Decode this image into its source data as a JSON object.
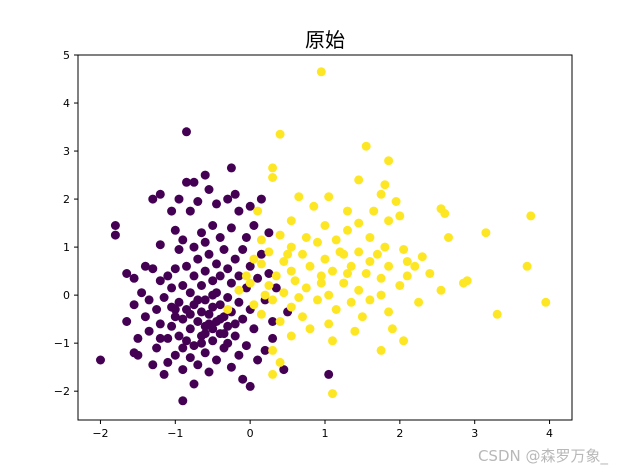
{
  "chart_data": {
    "type": "scatter",
    "title": "原始",
    "xlabel": "",
    "ylabel": "",
    "xlim": [
      -2.3,
      4.3
    ],
    "ylim": [
      -2.6,
      5.0
    ],
    "xticks": [
      -2,
      -1,
      0,
      1,
      2,
      3,
      4
    ],
    "yticks": [
      -2,
      -1,
      0,
      1,
      2,
      3,
      4,
      5
    ],
    "grid": false,
    "legend": "none",
    "colors": {
      "class_0": "#440154",
      "class_1": "#fde725"
    },
    "series": [
      {
        "class": 0,
        "points": [
          [
            -2.0,
            -1.35
          ],
          [
            -1.8,
            1.45
          ],
          [
            -1.8,
            1.25
          ],
          [
            -1.65,
            0.45
          ],
          [
            -1.65,
            -0.55
          ],
          [
            -1.55,
            0.35
          ],
          [
            -1.55,
            -0.2
          ],
          [
            -1.55,
            -1.2
          ],
          [
            -1.5,
            -0.9
          ],
          [
            -1.5,
            -1.25
          ],
          [
            -1.45,
            0.05
          ],
          [
            -1.4,
            0.6
          ],
          [
            -1.4,
            -0.45
          ],
          [
            -1.35,
            -0.1
          ],
          [
            -1.35,
            -0.75
          ],
          [
            -1.3,
            2.0
          ],
          [
            -1.3,
            0.55
          ],
          [
            -1.3,
            -1.45
          ],
          [
            -1.25,
            -0.3
          ],
          [
            -1.25,
            -1.1
          ],
          [
            -1.2,
            2.1
          ],
          [
            -1.2,
            1.05
          ],
          [
            -1.2,
            0.3
          ],
          [
            -1.2,
            -0.6
          ],
          [
            -1.15,
            -1.65
          ],
          [
            -1.15,
            -0.05
          ],
          [
            -1.1,
            0.4
          ],
          [
            -1.1,
            -0.9
          ],
          [
            -1.1,
            -1.4
          ],
          [
            -1.05,
            1.75
          ],
          [
            -1.05,
            0.15
          ],
          [
            -1.05,
            -0.25
          ],
          [
            -1.05,
            -0.65
          ],
          [
            -1.0,
            1.35
          ],
          [
            -1.0,
            0.55
          ],
          [
            -1.0,
            -0.45
          ],
          [
            -1.0,
            -1.25
          ],
          [
            -0.95,
            2.0
          ],
          [
            -0.95,
            0.95
          ],
          [
            -0.95,
            -0.15
          ],
          [
            -0.95,
            -0.85
          ],
          [
            -0.9,
            -2.2
          ],
          [
            -0.9,
            1.15
          ],
          [
            -0.9,
            0.2
          ],
          [
            -0.9,
            -0.5
          ],
          [
            -0.9,
            -1.55
          ],
          [
            -0.85,
            3.4
          ],
          [
            -0.85,
            2.35
          ],
          [
            -0.85,
            0.6
          ],
          [
            -0.85,
            -0.3
          ],
          [
            -0.85,
            -0.95
          ],
          [
            -0.8,
            1.75
          ],
          [
            -0.8,
            0.05
          ],
          [
            -0.8,
            -0.7
          ],
          [
            -0.8,
            -1.3
          ],
          [
            -0.75,
            2.35
          ],
          [
            -0.75,
            1.0
          ],
          [
            -0.75,
            0.4
          ],
          [
            -0.75,
            -0.2
          ],
          [
            -0.75,
            -1.05
          ],
          [
            -0.75,
            -1.85
          ],
          [
            -0.7,
            1.95
          ],
          [
            -0.7,
            0.75
          ],
          [
            -0.7,
            -0.55
          ],
          [
            -0.7,
            -1.45
          ],
          [
            -0.65,
            1.3
          ],
          [
            -0.65,
            0.2
          ],
          [
            -0.65,
            -0.35
          ],
          [
            -0.65,
            -0.85
          ],
          [
            -0.6,
            2.5
          ],
          [
            -0.6,
            1.1
          ],
          [
            -0.6,
            0.5
          ],
          [
            -0.6,
            -0.1
          ],
          [
            -0.6,
            -0.65
          ],
          [
            -0.6,
            -1.2
          ],
          [
            -0.55,
            2.2
          ],
          [
            -0.55,
            0.85
          ],
          [
            -0.55,
            -0.4
          ],
          [
            -0.55,
            -1.6
          ],
          [
            -0.5,
            1.45
          ],
          [
            -0.5,
            0.3
          ],
          [
            -0.5,
            -0.25
          ],
          [
            -0.5,
            -0.95
          ],
          [
            -0.45,
            1.9
          ],
          [
            -0.45,
            0.65
          ],
          [
            -0.45,
            0.05
          ],
          [
            -0.45,
            -0.55
          ],
          [
            -0.45,
            -1.35
          ],
          [
            -0.4,
            1.2
          ],
          [
            -0.4,
            0.4
          ],
          [
            -0.4,
            -0.2
          ],
          [
            -0.4,
            -0.8
          ],
          [
            -0.35,
            0.95
          ],
          [
            -0.35,
            -0.45
          ],
          [
            -0.35,
            -1.1
          ],
          [
            -0.3,
            2.0
          ],
          [
            -0.3,
            0.55
          ],
          [
            -0.3,
            -0.05
          ],
          [
            -0.3,
            -0.65
          ],
          [
            -0.25,
            2.65
          ],
          [
            -0.25,
            1.4
          ],
          [
            -0.25,
            0.25
          ],
          [
            -0.25,
            -0.35
          ],
          [
            -0.25,
            -1.5
          ],
          [
            -0.2,
            2.1
          ],
          [
            -0.2,
            0.75
          ],
          [
            -0.2,
            -0.85
          ],
          [
            -0.15,
            1.75
          ],
          [
            -0.15,
            0.4
          ],
          [
            -0.15,
            -0.15
          ],
          [
            -0.15,
            -1.25
          ],
          [
            -0.1,
            0.95
          ],
          [
            -0.1,
            -0.5
          ],
          [
            -0.1,
            -1.75
          ],
          [
            -0.05,
            1.2
          ],
          [
            -0.05,
            0.15
          ],
          [
            -0.05,
            -1.05
          ],
          [
            0.0,
            1.85
          ],
          [
            0.0,
            0.6
          ],
          [
            0.0,
            -0.3
          ],
          [
            0.0,
            -1.9
          ],
          [
            0.05,
            1.45
          ],
          [
            0.05,
            -0.7
          ],
          [
            0.1,
            0.35
          ],
          [
            0.1,
            -1.35
          ],
          [
            0.15,
            2.0
          ],
          [
            0.15,
            0.85
          ],
          [
            0.2,
            -0.1
          ],
          [
            0.2,
            -1.15
          ],
          [
            0.25,
            1.3
          ],
          [
            0.25,
            0.45
          ],
          [
            0.3,
            -0.55
          ],
          [
            0.3,
            -0.9
          ],
          [
            0.35,
            0.15
          ],
          [
            0.45,
            -1.55
          ],
          [
            0.5,
            -0.35
          ],
          [
            -1.0,
            -0.3
          ],
          [
            -0.7,
            -0.1
          ],
          [
            -0.5,
            -0.7
          ],
          [
            -0.3,
            -1.0
          ],
          [
            -0.6,
            -0.8
          ],
          [
            -0.8,
            -0.4
          ],
          [
            -0.4,
            -0.5
          ],
          [
            -0.2,
            -0.6
          ],
          [
            -0.5,
            0.0
          ],
          [
            -0.9,
            -1.1
          ],
          [
            -1.2,
            -0.9
          ],
          [
            -0.65,
            -1.0
          ],
          [
            -0.55,
            -0.6
          ],
          [
            -0.35,
            -0.8
          ],
          [
            1.05,
            -1.65
          ]
        ]
      },
      {
        "class": 1,
        "points": [
          [
            0.95,
            4.65
          ],
          [
            0.4,
            3.35
          ],
          [
            1.55,
            3.1
          ],
          [
            1.85,
            2.8
          ],
          [
            0.3,
            2.65
          ],
          [
            0.3,
            2.45
          ],
          [
            1.45,
            2.4
          ],
          [
            1.8,
            2.3
          ],
          [
            0.65,
            2.05
          ],
          [
            1.05,
            2.05
          ],
          [
            1.75,
            2.1
          ],
          [
            1.95,
            1.95
          ],
          [
            2.55,
            1.8
          ],
          [
            2.6,
            1.7
          ],
          [
            3.75,
            1.65
          ],
          [
            0.85,
            1.85
          ],
          [
            1.3,
            1.75
          ],
          [
            1.65,
            1.75
          ],
          [
            0.1,
            1.75
          ],
          [
            2.0,
            1.65
          ],
          [
            0.55,
            1.55
          ],
          [
            1.45,
            1.5
          ],
          [
            1.85,
            1.55
          ],
          [
            1.0,
            1.45
          ],
          [
            1.3,
            1.35
          ],
          [
            3.15,
            1.3
          ],
          [
            0.4,
            1.25
          ],
          [
            0.75,
            1.2
          ],
          [
            1.15,
            1.15
          ],
          [
            1.6,
            1.2
          ],
          [
            2.65,
            1.2
          ],
          [
            0.9,
            1.1
          ],
          [
            1.8,
            1.0
          ],
          [
            2.05,
            0.95
          ],
          [
            0.55,
            1.0
          ],
          [
            0.25,
            0.9
          ],
          [
            1.45,
            0.9
          ],
          [
            0.7,
            0.85
          ],
          [
            1.25,
            0.85
          ],
          [
            2.3,
            0.8
          ],
          [
            0.45,
            0.7
          ],
          [
            1.0,
            0.75
          ],
          [
            1.6,
            0.7
          ],
          [
            2.1,
            0.7
          ],
          [
            0.15,
            0.65
          ],
          [
            0.8,
            0.6
          ],
          [
            1.35,
            0.6
          ],
          [
            1.85,
            0.6
          ],
          [
            2.2,
            0.6
          ],
          [
            0.55,
            0.5
          ],
          [
            1.1,
            0.5
          ],
          [
            1.55,
            0.45
          ],
          [
            2.4,
            0.45
          ],
          [
            0.35,
            0.4
          ],
          [
            0.95,
            0.4
          ],
          [
            1.75,
            0.35
          ],
          [
            2.9,
            0.3
          ],
          [
            0.6,
            0.3
          ],
          [
            1.25,
            0.25
          ],
          [
            2.0,
            0.2
          ],
          [
            0.25,
            0.2
          ],
          [
            0.75,
            0.15
          ],
          [
            1.45,
            0.1
          ],
          [
            2.55,
            0.1
          ],
          [
            0.45,
            0.05
          ],
          [
            1.05,
            0.0
          ],
          [
            1.75,
            0.0
          ],
          [
            0.3,
            -0.1
          ],
          [
            0.9,
            -0.1
          ],
          [
            1.35,
            -0.15
          ],
          [
            2.25,
            -0.15
          ],
          [
            0.55,
            -0.25
          ],
          [
            1.15,
            -0.3
          ],
          [
            1.85,
            -0.35
          ],
          [
            0.7,
            -0.45
          ],
          [
            1.5,
            -0.45
          ],
          [
            0.4,
            -0.55
          ],
          [
            1.05,
            -0.6
          ],
          [
            3.3,
            -0.4
          ],
          [
            0.8,
            -0.7
          ],
          [
            1.4,
            -0.75
          ],
          [
            1.9,
            -0.7
          ],
          [
            0.55,
            -0.85
          ],
          [
            1.1,
            -0.95
          ],
          [
            2.05,
            -0.95
          ],
          [
            0.3,
            -1.15
          ],
          [
            1.75,
            -1.15
          ],
          [
            0.4,
            -1.4
          ],
          [
            0.3,
            -1.65
          ],
          [
            1.1,
            -2.05
          ],
          [
            3.95,
            -0.15
          ],
          [
            3.7,
            0.6
          ],
          [
            2.85,
            0.25
          ],
          [
            0.15,
            1.15
          ],
          [
            0.05,
            0.75
          ],
          [
            -0.05,
            0.4
          ],
          [
            0.2,
            0.0
          ],
          [
            0.05,
            -0.2
          ],
          [
            -0.15,
            0.1
          ],
          [
            0.15,
            -0.4
          ],
          [
            0.0,
            0.25
          ],
          [
            -0.3,
            -0.3
          ],
          [
            1.2,
            0.9
          ],
          [
            1.6,
            -0.1
          ],
          [
            0.65,
            -0.05
          ],
          [
            1.3,
            0.45
          ],
          [
            1.7,
            0.85
          ],
          [
            0.95,
            0.25
          ],
          [
            2.1,
            0.4
          ],
          [
            0.5,
            0.85
          ]
        ]
      }
    ]
  },
  "watermark": "CSDN @森罗万象_"
}
